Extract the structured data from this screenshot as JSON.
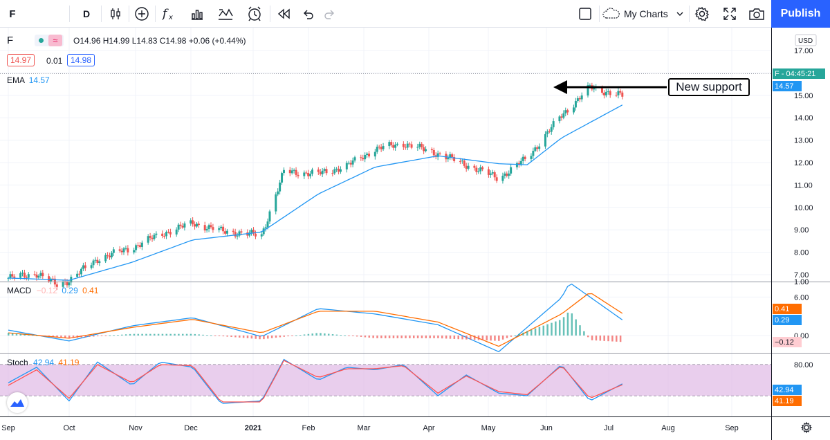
{
  "toolbar": {
    "symbol": "F",
    "interval": "D",
    "my_charts": "My Charts",
    "publish": "Publish",
    "icons": [
      "candles-icon",
      "add-compare-icon",
      "indicators-icon",
      "templates-icon",
      "compare-icon",
      "alert-icon",
      "replay-icon",
      "undo-icon",
      "redo-icon",
      "layout-icon",
      "cloud-icon",
      "chevron-down-icon",
      "settings-icon",
      "fullscreen-icon",
      "camera-icon"
    ]
  },
  "legend": {
    "symbol": "F",
    "ohlc": "O14.96 H14.99 L14.83 C14.98 +0.06 (+0.44%)",
    "bid": "14.97",
    "spread": "0.01",
    "ask": "14.98",
    "ema_label": "EMA",
    "ema_value": "14.57",
    "macd_label": "MACD",
    "macd_hist": "−0.12",
    "macd_line": "0.29",
    "macd_signal": "0.41",
    "stoch_label": "Stoch",
    "stoch_k": "42.94",
    "stoch_d": "41.19"
  },
  "annotation": "New support",
  "price_tags": {
    "last": "F - 04:45:21",
    "ema": "14.57",
    "currency": "USD",
    "macd_signal": "0.41",
    "macd_line": "0.29",
    "macd_hist": "−0.12",
    "stoch_k": "42.94",
    "stoch_d": "41.19"
  },
  "colors": {
    "up": "#26a69a",
    "down": "#ef5350",
    "ema": "#2196f3",
    "macd": "#2196f3",
    "signal": "#ff6d00",
    "stoch_k": "#2196f3",
    "stoch_d": "#ff5252",
    "stoch_band": "#e1bee7"
  },
  "chart_data": {
    "type": "line",
    "price_axis": [
      "17.00",
      "16.00",
      "15.00",
      "14.00",
      "13.00",
      "12.00",
      "11.00",
      "10.00",
      "9.00",
      "8.00",
      "7.00",
      "6.00"
    ],
    "macd_axis": [
      "1.00",
      "0.00"
    ],
    "stoch_axis": [
      "80.00"
    ],
    "time_axis": [
      "Sep",
      "Oct",
      "Nov",
      "Dec",
      "2021",
      "Feb",
      "Mar",
      "Apr",
      "May",
      "Jun",
      "Jul",
      "Aug",
      "Sep"
    ],
    "series": [
      {
        "x": [
          "2020-09-01",
          "2020-09-15",
          "2020-09-25",
          "2020-10-01",
          "2020-10-15",
          "2020-11-01",
          "2020-11-15",
          "2020-12-01",
          "2020-12-15",
          "2021-01-04",
          "2021-01-15",
          "2021-02-01",
          "2021-02-15",
          "2021-03-01",
          "2021-03-15",
          "2021-04-01",
          "2021-04-15",
          "2021-05-01",
          "2021-05-15",
          "2021-06-01",
          "2021-06-15",
          "2021-07-01"
        ],
        "values": [
          6.85,
          7.05,
          6.55,
          6.75,
          7.7,
          8.2,
          8.8,
          9.3,
          8.95,
          8.75,
          11.6,
          11.5,
          11.85,
          12.6,
          12.85,
          12.4,
          11.9,
          11.3,
          12.2,
          14.1,
          15.35,
          14.98
        ]
      },
      {
        "x": [
          "2020-09-01",
          "2020-10-01",
          "2020-11-01",
          "2020-12-01",
          "2021-01-04",
          "2021-02-01",
          "2021-03-01",
          "2021-04-01",
          "2021-05-01",
          "2021-05-15",
          "2021-06-01",
          "2021-07-01"
        ],
        "values": [
          6.85,
          6.75,
          7.55,
          8.55,
          8.9,
          10.6,
          11.8,
          12.3,
          11.95,
          11.9,
          13.1,
          14.57
        ]
      },
      {
        "x": [
          "2020-09-01",
          "2020-10-01",
          "2020-11-01",
          "2020-12-01",
          "2021-01-04",
          "2021-02-01",
          "2021-03-01",
          "2021-04-01",
          "2021-05-01",
          "2021-06-01",
          "2021-06-05",
          "2021-07-01"
        ],
        "values": [
          0.1,
          -0.1,
          0.18,
          0.33,
          -0.02,
          0.5,
          0.4,
          0.2,
          -0.3,
          0.7,
          0.98,
          0.29
        ]
      },
      {
        "x": [
          "2020-09-01",
          "2020-10-01",
          "2020-11-01",
          "2020-12-01",
          "2021-01-04",
          "2021-02-01",
          "2021-03-01",
          "2021-04-01",
          "2021-05-01",
          "2021-06-01",
          "2021-06-15",
          "2021-07-01"
        ],
        "values": [
          0.05,
          -0.05,
          0.15,
          0.3,
          0.05,
          0.45,
          0.45,
          0.25,
          -0.2,
          0.4,
          0.8,
          0.41
        ]
      },
      {
        "x": [
          "2020-09-01",
          "2020-09-15",
          "2020-10-01",
          "2020-10-15",
          "2020-11-01",
          "2020-11-15",
          "2020-12-01",
          "2020-12-15",
          "2021-01-04",
          "2021-01-15",
          "2021-02-01",
          "2021-02-15",
          "2021-03-01",
          "2021-03-15",
          "2021-04-01",
          "2021-04-15",
          "2021-05-01",
          "2021-05-15",
          "2021-06-01",
          "2021-06-15",
          "2021-07-01"
        ],
        "values": [
          45,
          75,
          10,
          85,
          40,
          85,
          75,
          5,
          10,
          90,
          50,
          75,
          70,
          80,
          20,
          60,
          25,
          20,
          80,
          10,
          42.94
        ]
      },
      {
        "x": [
          "2020-09-01",
          "2020-09-15",
          "2020-10-01",
          "2020-10-15",
          "2020-11-01",
          "2020-11-15",
          "2020-12-01",
          "2020-12-15",
          "2021-01-04",
          "2021-01-15",
          "2021-02-01",
          "2021-02-15",
          "2021-03-01",
          "2021-03-15",
          "2021-04-01",
          "2021-04-15",
          "2021-05-01",
          "2021-05-15",
          "2021-06-01",
          "2021-06-15",
          "2021-07-01"
        ],
        "values": [
          40,
          70,
          15,
          80,
          45,
          80,
          78,
          8,
          8,
          88,
          55,
          72,
          72,
          78,
          25,
          58,
          28,
          22,
          78,
          15,
          41.19
        ]
      }
    ]
  }
}
